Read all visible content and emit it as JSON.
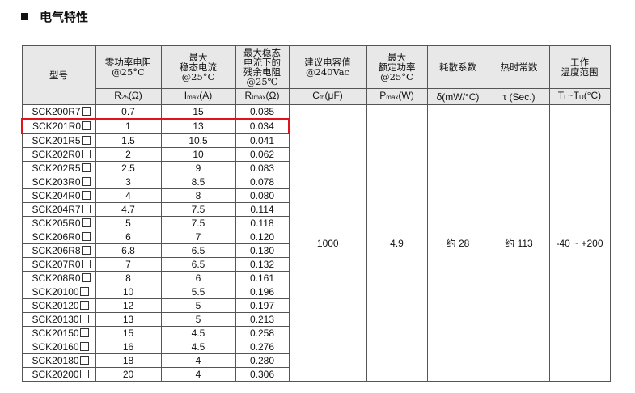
{
  "section_title": "电气特性",
  "highlight_color": "#e0141e",
  "headers": [
    {
      "label": "型号",
      "unit": ""
    },
    {
      "label": "零功率电阻 @25°C",
      "unit_main": "R",
      "unit_sub": "25",
      "unit_rest": "(Ω)"
    },
    {
      "label": "最大 稳态电流 @25°C",
      "unit_main": "I",
      "unit_sub": "max",
      "unit_rest": "(A)"
    },
    {
      "label": "最大稳态 电流下的 残余电阻 @25℃",
      "unit_main": "R",
      "unit_sub": "Imax",
      "unit_rest": "(Ω)"
    },
    {
      "label": "建议电容值 @240Vac",
      "unit_main": "C",
      "unit_sub": "th",
      "unit_rest": "(μF)"
    },
    {
      "label": "最大 额定功率 @25°C",
      "unit_main": "P",
      "unit_sub": "max",
      "unit_rest": "(W)"
    },
    {
      "label": "耗散系数",
      "unit_main": "δ(mW/°C)",
      "unit_sub": "",
      "unit_rest": ""
    },
    {
      "label": "热时常数",
      "unit_main": "τ (Sec.)",
      "unit_sub": "",
      "unit_rest": ""
    },
    {
      "label": "工作 温度范围",
      "unit_main": "T",
      "unit_sub": "L",
      "unit_rest": "~T",
      "unit_sub2": "U",
      "unit_rest2": "(°C)"
    }
  ],
  "rows": [
    [
      "SCK200R7",
      "0.7",
      "15",
      "0.035"
    ],
    [
      "SCK201R0",
      "1",
      "13",
      "0.034"
    ],
    [
      "SCK201R5",
      "1.5",
      "10.5",
      "0.041"
    ],
    [
      "SCK202R0",
      "2",
      "10",
      "0.062"
    ],
    [
      "SCK202R5",
      "2.5",
      "9",
      "0.083"
    ],
    [
      "SCK203R0",
      "3",
      "8.5",
      "0.078"
    ],
    [
      "SCK204R0",
      "4",
      "8",
      "0.080"
    ],
    [
      "SCK204R7",
      "4.7",
      "7.5",
      "0.114"
    ],
    [
      "SCK205R0",
      "5",
      "7.5",
      "0.118"
    ],
    [
      "SCK206R0",
      "6",
      "7",
      "0.120"
    ],
    [
      "SCK206R8",
      "6.8",
      "6.5",
      "0.130"
    ],
    [
      "SCK207R0",
      "7",
      "6.5",
      "0.132"
    ],
    [
      "SCK208R0",
      "8",
      "6",
      "0.161"
    ],
    [
      "SCK20100",
      "10",
      "5.5",
      "0.196"
    ],
    [
      "SCK20120",
      "12",
      "5",
      "0.197"
    ],
    [
      "SCK20130",
      "13",
      "5",
      "0.213"
    ],
    [
      "SCK20150",
      "15",
      "4.5",
      "0.258"
    ],
    [
      "SCK20160",
      "16",
      "4.5",
      "0.276"
    ],
    [
      "SCK20180",
      "18",
      "4",
      "0.280"
    ],
    [
      "SCK20200",
      "20",
      "4",
      "0.306"
    ]
  ],
  "highlighted_row": 1,
  "shared": {
    "capacitance": "1000",
    "power": "4.9",
    "dissipation": "约 28",
    "time_constant": "约 113",
    "temp_range": "-40 ~ +200"
  }
}
